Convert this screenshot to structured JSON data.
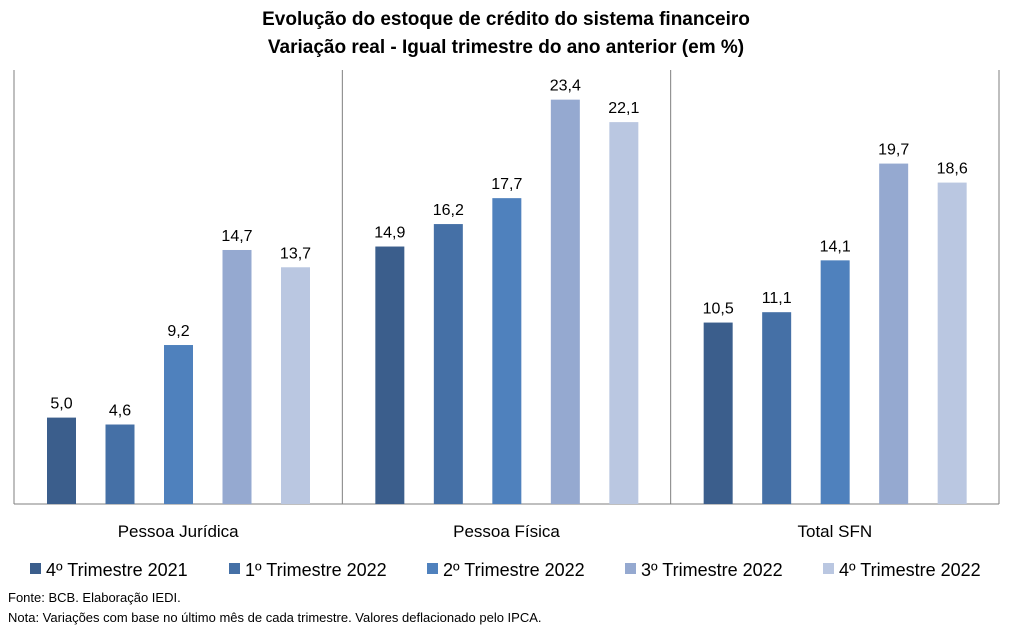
{
  "chart_data": {
    "type": "bar",
    "title": "Evolução do estoque de crédito do sistema financeiro",
    "subtitle": "Variação real - Igual trimestre do ano anterior (em %)",
    "xlabel": "",
    "ylabel": "",
    "ylim": [
      0,
      25
    ],
    "grid": false,
    "legend_position": "bottom",
    "categories": [
      "Pessoa Jurídica",
      "Pessoa Física",
      "Total SFN"
    ],
    "series": [
      {
        "name": "4º Trimestre 2021",
        "color": "#3B5E8C",
        "values": [
          5.0,
          14.9,
          10.5
        ],
        "labels": [
          "5,0",
          "14,9",
          "10,5"
        ]
      },
      {
        "name": "1º Trimestre 2022",
        "color": "#4570A6",
        "values": [
          4.6,
          16.2,
          11.1
        ],
        "labels": [
          "4,6",
          "16,2",
          "11,1"
        ]
      },
      {
        "name": "2º Trimestre 2022",
        "color": "#4F81BD",
        "values": [
          9.2,
          17.7,
          14.1
        ],
        "labels": [
          "9,2",
          "17,7",
          "14,1"
        ]
      },
      {
        "name": "3º Trimestre 2022",
        "color": "#95A9D0",
        "values": [
          14.7,
          23.4,
          19.7
        ],
        "labels": [
          "14,7",
          "23,4",
          "19,7"
        ]
      },
      {
        "name": "4º Trimestre 2022",
        "color": "#BAC7E1",
        "values": [
          13.7,
          22.1,
          18.6
        ],
        "labels": [
          "13,7",
          "22,1",
          "18,6"
        ]
      }
    ]
  },
  "footer": {
    "source": "Fonte: BCB. Elaboração IEDI.",
    "note": "Nota: Variações com base no último mês de cada trimestre. Valores deflacionado pelo IPCA."
  }
}
